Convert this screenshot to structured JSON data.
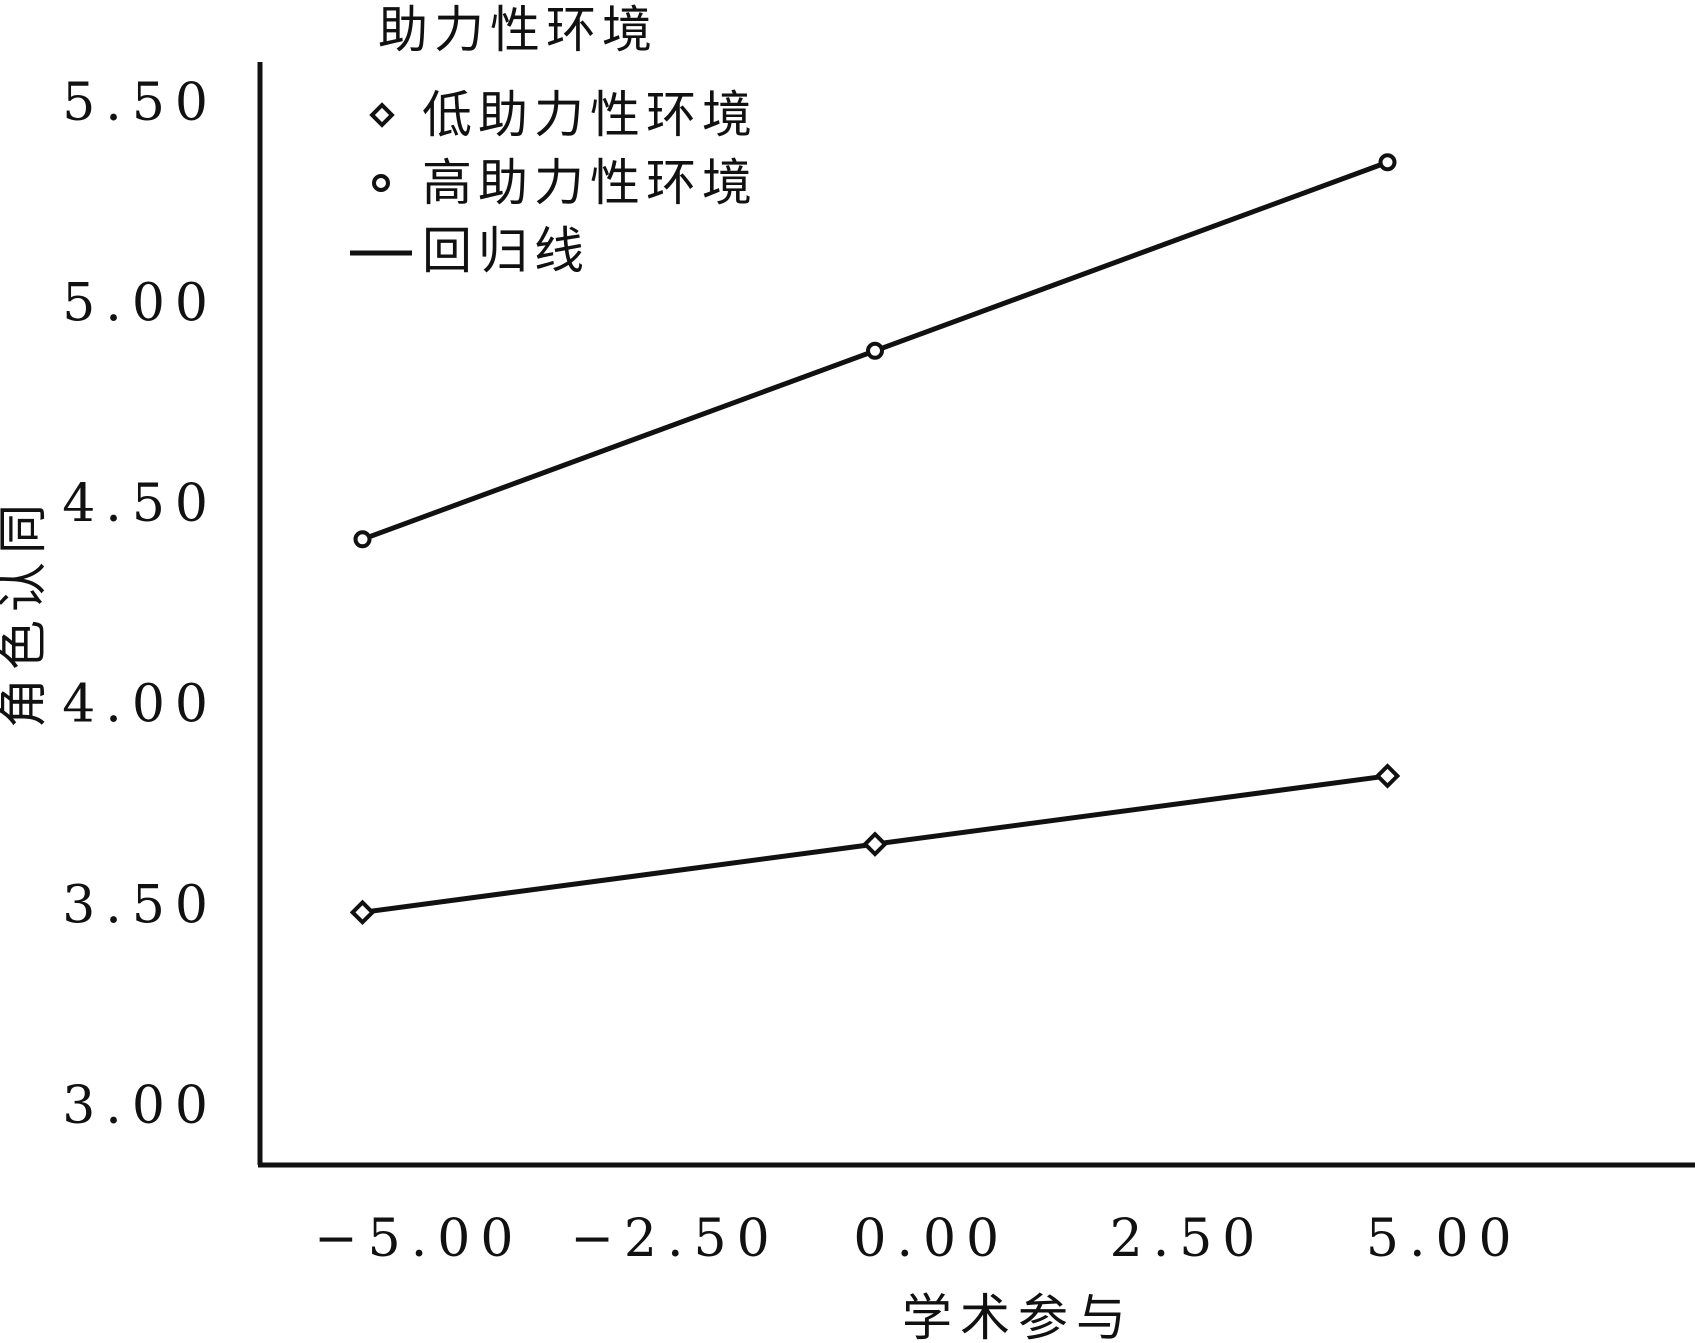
{
  "chart_data": {
    "type": "line",
    "xlabel": "学术参与",
    "ylabel": "角色认同",
    "xlim": [
      -6.5,
      7.5
    ],
    "ylim": [
      2.85,
      5.6
    ],
    "x_ticks": [
      "-5.00",
      "-2.50",
      "0.00",
      "2.50",
      "5.00"
    ],
    "y_ticks": [
      "3.00",
      "3.50",
      "4.00",
      "4.50",
      "5.00",
      "5.50"
    ],
    "legend": {
      "title": "助力性环境",
      "entries": [
        "低助力性环境",
        "高助力性环境",
        "回归线"
      ],
      "position": "top-left"
    },
    "series": [
      {
        "name": "低助力性环境",
        "marker": "diamond",
        "x": [
          -5.5,
          -0.5,
          4.5
        ],
        "y": [
          3.48,
          3.65,
          3.82
        ]
      },
      {
        "name": "高助力性环境",
        "marker": "circle",
        "x": [
          -5.5,
          -0.5,
          4.5
        ],
        "y": [
          4.41,
          4.88,
          5.35
        ]
      }
    ],
    "grid": false,
    "colors": {
      "line": "#111111",
      "background": "#ffffff"
    }
  }
}
